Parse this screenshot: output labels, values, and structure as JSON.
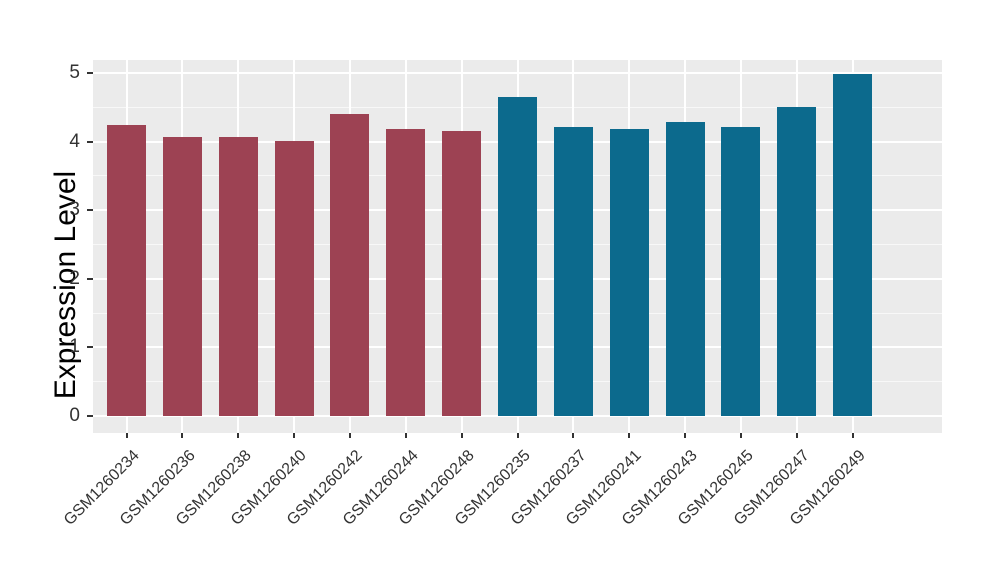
{
  "style": {
    "panel_background": "#ebebeb",
    "figure_background": "#ffffff",
    "gridline_major_color": "#ffffff",
    "gridline_minor_color": "rgba(255,255,255,0.65)",
    "tick_color": "#333333",
    "tick_text_color": "#333333",
    "axis_title_color": "#000000",
    "bar_color_left_group": "#9d4253",
    "bar_color_right_group": "#0c6a8d"
  },
  "chart_data": {
    "type": "bar",
    "title": "",
    "xlabel": "",
    "ylabel": "Expression Level",
    "categories": [
      "GSM1260234",
      "GSM1260236",
      "GSM1260238",
      "GSM1260240",
      "GSM1260242",
      "GSM1260244",
      "GSM1260248",
      "GSM1260235",
      "GSM1260237",
      "GSM1260241",
      "GSM1260243",
      "GSM1260245",
      "GSM1260247",
      "GSM1260249"
    ],
    "values": [
      4.24,
      4.07,
      4.07,
      4.01,
      4.4,
      4.19,
      4.15,
      4.65,
      4.22,
      4.19,
      4.28,
      4.22,
      4.5,
      4.98
    ],
    "bar_colors": [
      "#9d4253",
      "#9d4253",
      "#9d4253",
      "#9d4253",
      "#9d4253",
      "#9d4253",
      "#9d4253",
      "#0c6a8d",
      "#0c6a8d",
      "#0c6a8d",
      "#0c6a8d",
      "#0c6a8d",
      "#0c6a8d",
      "#0c6a8d"
    ],
    "y_ticks": [
      0,
      1,
      2,
      3,
      4,
      5
    ],
    "y_minor_ticks": [
      0.5,
      1.5,
      2.5,
      3.5,
      4.5
    ],
    "ylim": [
      -0.25,
      5.19
    ],
    "bar_width_fraction": 0.7,
    "x_label_angle_deg": 45,
    "grid": "horizontal major+minor, vertical major at category centers",
    "legend": false
  }
}
